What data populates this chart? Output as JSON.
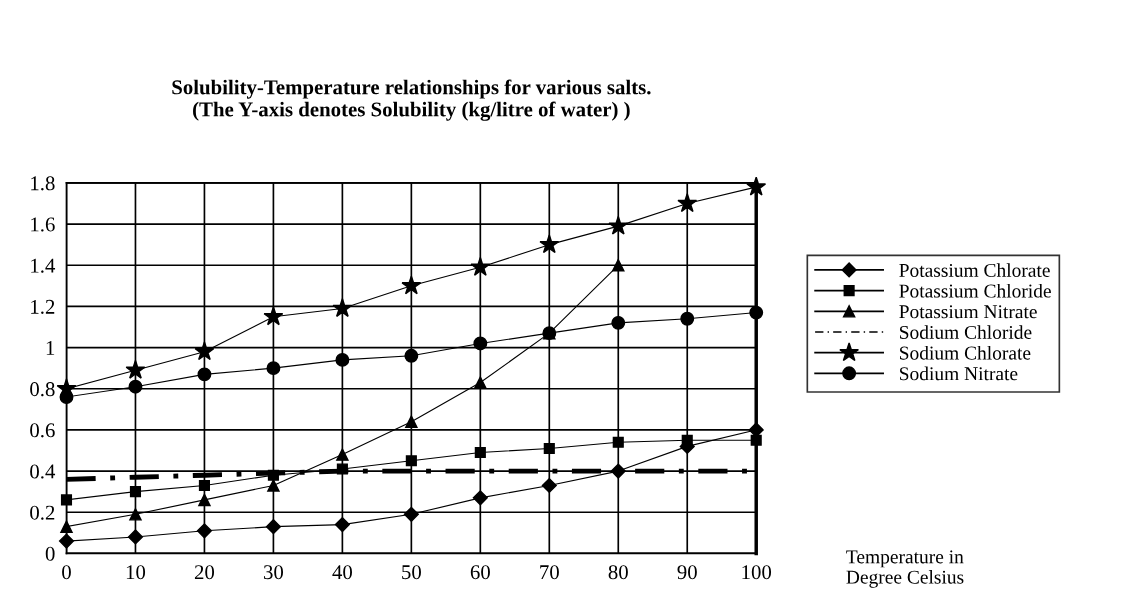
{
  "chart_data": {
    "type": "line",
    "title": "Solubility-Temperature relationships for various salts.\n(The Y-axis denotes Solubility (kg/litre of water) )",
    "xlabel": "Temperature in\nDegree Celsius",
    "x": [
      0,
      10,
      20,
      30,
      40,
      50,
      60,
      70,
      80,
      90,
      100
    ],
    "xlim": [
      0,
      100
    ],
    "xticks": [
      0,
      10,
      20,
      30,
      40,
      50,
      60,
      70,
      80,
      90,
      100
    ],
    "ylim": [
      0,
      1.8
    ],
    "yticks": [
      0,
      0.2,
      0.4,
      0.6,
      0.8,
      1,
      1.2,
      1.4,
      1.6,
      1.8
    ],
    "grid": true,
    "legend": "right",
    "series": [
      {
        "name": "Potassium Chlorate",
        "color": "#000000",
        "marker": "diamond",
        "line_style": "solid",
        "values": [
          0.06,
          0.08,
          0.11,
          0.13,
          0.14,
          0.19,
          0.27,
          0.33,
          0.4,
          0.52,
          0.6
        ]
      },
      {
        "name": "Potassium Chloride",
        "color": "#000000",
        "marker": "square",
        "line_style": "solid",
        "values": [
          0.26,
          0.3,
          0.33,
          0.38,
          0.41,
          0.45,
          0.49,
          0.51,
          0.54,
          0.55,
          0.55
        ]
      },
      {
        "name": "Potassium Nitrate",
        "color": "#000000",
        "marker": "triangle",
        "line_style": "solid",
        "values": [
          0.13,
          0.19,
          0.26,
          0.33,
          0.48,
          0.64,
          0.83,
          1.07,
          1.4,
          null,
          null
        ]
      },
      {
        "name": "Sodium Chloride",
        "color": "#000000",
        "marker": "none",
        "line_style": "dashdot",
        "values": [
          0.36,
          0.37,
          0.38,
          0.39,
          0.4,
          0.4,
          0.4,
          0.4,
          0.4,
          0.4,
          0.4
        ]
      },
      {
        "name": "Sodium Chlorate",
        "color": "#000000",
        "marker": "star",
        "line_style": "solid",
        "values": [
          0.8,
          0.89,
          0.98,
          1.15,
          1.19,
          1.3,
          1.39,
          1.5,
          1.59,
          1.7,
          1.78
        ]
      },
      {
        "name": "Sodium Nitrate",
        "color": "#000000",
        "marker": "circle",
        "line_style": "solid",
        "values": [
          0.76,
          0.81,
          0.87,
          0.9,
          0.94,
          0.96,
          1.02,
          1.07,
          1.12,
          1.14,
          1.17
        ]
      }
    ]
  }
}
